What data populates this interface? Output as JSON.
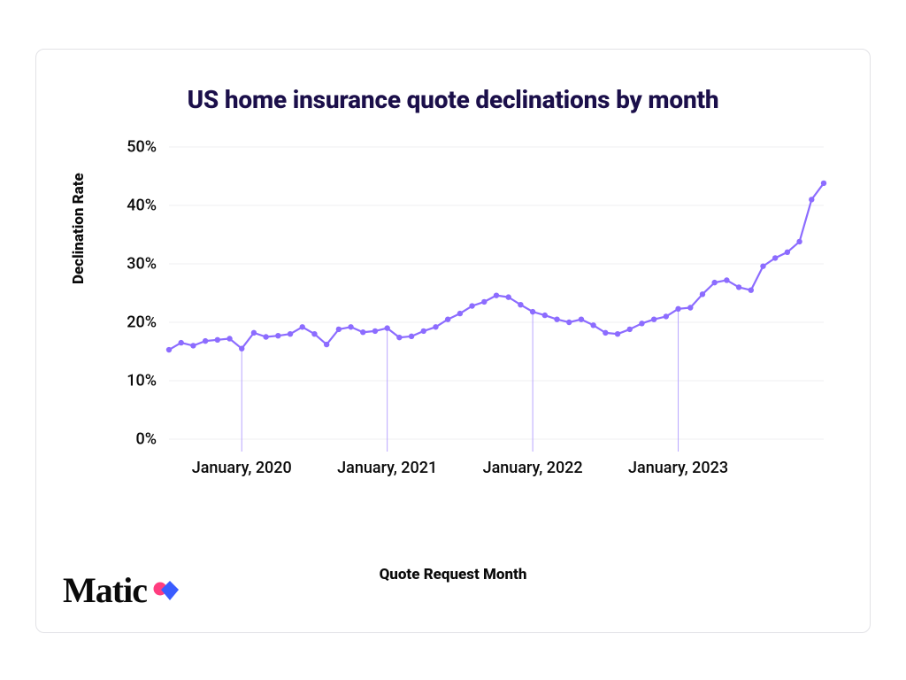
{
  "chart": {
    "type": "line",
    "title": "US home insurance quote declinations by month",
    "title_fontsize": 28,
    "title_color": "#1b0f4a",
    "xlabel": "Quote Request Month",
    "ylabel": "Declination Rate",
    "label_fontsize": 17,
    "label_color": "#0a0a0a",
    "background_color": "#ffffff",
    "grid_color": "#efeff2",
    "line_color": "#8c6cff",
    "marker_color": "#8c6cff",
    "marker_size": 3.2,
    "line_width": 2.2,
    "xtick_line_color": "#b9a6ff",
    "ylim": [
      0,
      50
    ],
    "ytick_step": 10,
    "yticks": [
      0,
      10,
      20,
      30,
      40,
      50
    ],
    "ytick_labels": [
      "0%",
      "10%",
      "20%",
      "30%",
      "40%",
      "50%"
    ],
    "xlim_index": [
      0,
      54
    ],
    "xtick_indices": [
      6,
      18,
      30,
      42
    ],
    "xtick_labels": [
      "January, 2020",
      "January, 2021",
      "January, 2022",
      "January, 2023"
    ],
    "tick_fontsize": 18,
    "values": [
      15.3,
      16.5,
      16.0,
      16.8,
      17.0,
      17.2,
      15.5,
      18.2,
      17.5,
      17.7,
      18.0,
      19.2,
      18.0,
      16.2,
      18.8,
      19.2,
      18.3,
      18.5,
      19.0,
      17.4,
      17.6,
      18.5,
      19.2,
      20.5,
      21.5,
      22.8,
      23.5,
      24.6,
      24.3,
      23.0,
      21.8,
      21.2,
      20.5,
      20.0,
      20.5,
      19.5,
      18.2,
      18.0,
      18.8,
      19.8,
      20.5,
      21.0,
      22.3,
      22.5,
      24.8,
      26.8,
      27.2,
      26.0,
      25.5,
      29.6,
      31.0,
      32.0,
      33.8,
      41.0,
      43.8
    ]
  },
  "card": {
    "border_color": "#e2e2e6",
    "border_radius": 10
  },
  "brand": {
    "name": "Matic",
    "logo_text_color": "#0a0a0a",
    "logo_accent_pink": "#ff3d7f",
    "logo_accent_blue": "#3a5cff"
  }
}
